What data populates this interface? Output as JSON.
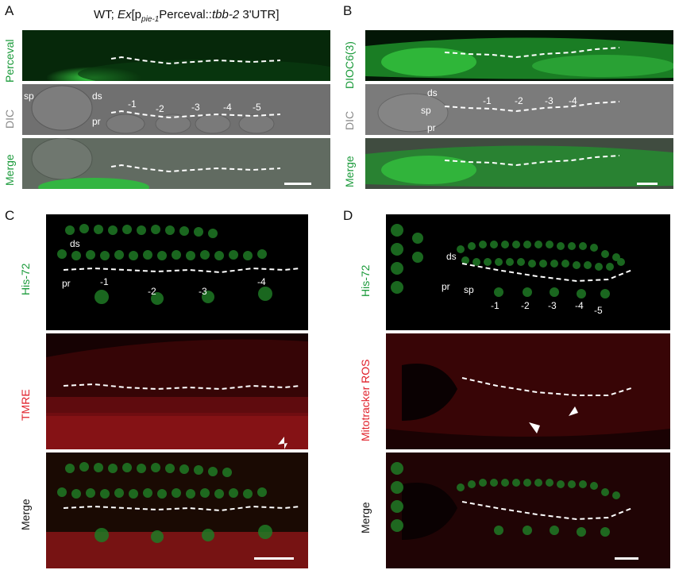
{
  "panels": {
    "A": {
      "letter": "A",
      "title_prefix": "WT; ",
      "title_ex": "Ex",
      "title_p": "[p",
      "title_sub": "pie-1",
      "title_mid": "Perceval::",
      "title_gene": "tbb-2",
      "title_suffix": " 3'UTR]",
      "rows": [
        "Perceval",
        "DIC",
        "Merge"
      ],
      "labels": {
        "sp": "sp",
        "ds": "ds",
        "pr": "pr",
        "oocytes": [
          "-1",
          "-2",
          "-3",
          "-4",
          "-5"
        ]
      }
    },
    "B": {
      "letter": "B",
      "rows": [
        "DIOC6(3)",
        "DIC",
        "Merge"
      ],
      "labels": {
        "ds": "ds",
        "sp": "sp",
        "pr": "pr",
        "oocytes": [
          "-1",
          "-2",
          "-3",
          "-4"
        ]
      }
    },
    "C": {
      "letter": "C",
      "rows": [
        "His-72",
        "TMRE",
        "Merge"
      ],
      "labels": {
        "ds": "ds",
        "pr": "pr",
        "oocytes": [
          "-1",
          "-2",
          "-3",
          "-4"
        ]
      }
    },
    "D": {
      "letter": "D",
      "rows": [
        "His-72",
        "Mitotracker ROS",
        "Merge"
      ],
      "labels": {
        "ds": "ds",
        "pr": "pr",
        "sp": "sp",
        "oocytes": [
          "-1",
          "-2",
          "-3",
          "-4",
          "-5"
        ]
      }
    }
  },
  "colors": {
    "green_label": "#1a9a3a",
    "red_label": "#e0202a",
    "dic_label": "#8a8a8a",
    "fluor_green": "#2fbf3a",
    "fluor_red": "#d81e1e"
  }
}
